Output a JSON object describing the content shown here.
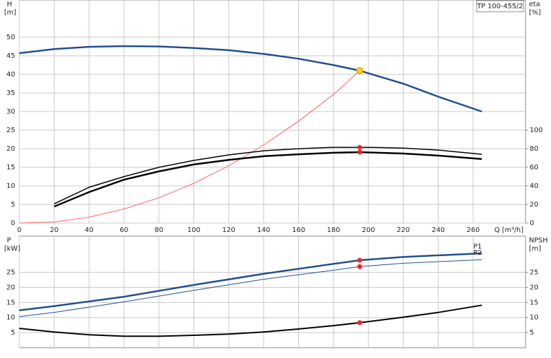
{
  "chart_data": [
    {
      "type": "line",
      "title": "TP 100-455/2",
      "xlabel": "Q [m³/h]",
      "ylabel": "H",
      "ylabel_unit": "[m]",
      "y2label": "eta",
      "y2label_unit": "[%]",
      "xlim": [
        0,
        290
      ],
      "xticks": [
        0,
        20,
        40,
        60,
        80,
        100,
        120,
        140,
        160,
        180,
        200,
        220,
        240,
        260
      ],
      "ylim": [
        0,
        60
      ],
      "yticks": [
        0,
        5,
        10,
        15,
        20,
        25,
        30,
        35,
        40,
        45,
        50
      ],
      "y2lim": [
        0,
        240
      ],
      "y2ticks": [
        0,
        20,
        40,
        60,
        80,
        100
      ],
      "grid": true,
      "series": [
        {
          "color": "#1f4e8c",
          "width": 2.5,
          "axis": "y",
          "x": [
            0,
            20,
            40,
            60,
            80,
            100,
            120,
            140,
            160,
            180,
            195,
            200,
            220,
            240,
            265
          ],
          "values": [
            45.7,
            46.8,
            47.4,
            47.6,
            47.5,
            47.1,
            46.5,
            45.5,
            44.2,
            42.5,
            41,
            40.3,
            37.5,
            34,
            30
          ]
        },
        {
          "color": "#ff3b3b",
          "width": 0.8,
          "axis": "y",
          "x": [
            0,
            20,
            40,
            60,
            80,
            100,
            120,
            140,
            160,
            180,
            195
          ],
          "values": [
            0,
            0.3,
            1.6,
            3.8,
            6.8,
            10.7,
            15.4,
            21,
            27.4,
            34.6,
            41
          ]
        },
        {
          "color": "#000000",
          "width": 1.5,
          "axis": "y2",
          "x": [
            20,
            40,
            60,
            80,
            100,
            120,
            140,
            160,
            180,
            200,
            220,
            240,
            265
          ],
          "values": [
            20.7,
            38.5,
            50,
            60,
            67.4,
            73.3,
            77.8,
            80,
            81.5,
            81.5,
            80.7,
            78.5,
            74
          ]
        },
        {
          "color": "#000000",
          "width": 2.5,
          "axis": "y2",
          "x": [
            20,
            40,
            60,
            80,
            100,
            120,
            140,
            160,
            180,
            195,
            220,
            240,
            265
          ],
          "values": [
            17.8,
            33.3,
            46.7,
            55.6,
            63,
            68,
            71.9,
            74,
            75.6,
            76.3,
            74.8,
            72.6,
            68.9
          ]
        }
      ],
      "points": [
        {
          "x": 195,
          "y": 41,
          "axis": "y",
          "color": "#ffd700"
        },
        {
          "x": 195,
          "y": 81.5,
          "axis": "y2",
          "color": "#ff2020"
        },
        {
          "x": 195,
          "y": 76.3,
          "axis": "y2",
          "color": "#ff2020"
        }
      ]
    },
    {
      "type": "line",
      "ylabel": "P",
      "ylabel_unit": "[kW]",
      "y2label": "NPSH",
      "y2label_unit": "[m]",
      "xlim": [
        0,
        290
      ],
      "ylim": [
        0,
        37
      ],
      "yticks": [
        5,
        10,
        15,
        20,
        25
      ],
      "y2lim": [
        0,
        37
      ],
      "y2ticks": [
        5,
        10,
        15,
        20,
        25
      ],
      "grid": true,
      "series": [
        {
          "name": "P1",
          "color": "#1f4e8c",
          "width": 2.5,
          "axis": "y",
          "x": [
            0,
            20,
            60,
            100,
            140,
            180,
            195,
            220,
            265
          ],
          "values": [
            12.4,
            13.8,
            16.9,
            20.8,
            24.5,
            27.8,
            29,
            30.1,
            31.3
          ]
        },
        {
          "name": "P2",
          "color": "#1f4e8c",
          "width": 1,
          "axis": "y",
          "x": [
            0,
            20,
            60,
            100,
            140,
            180,
            195,
            220,
            265
          ],
          "values": [
            10.3,
            11.7,
            15.2,
            19,
            22.7,
            25.7,
            26.9,
            28,
            29.2
          ]
        },
        {
          "color": "#000000",
          "width": 2,
          "axis": "y2",
          "x": [
            0,
            20,
            40,
            60,
            80,
            100,
            120,
            140,
            160,
            180,
            195,
            220,
            240,
            265
          ],
          "values": [
            6.4,
            5.2,
            4.3,
            3.8,
            3.8,
            4.1,
            4.5,
            5.2,
            6.2,
            7.3,
            8.3,
            10.1,
            11.7,
            14.1
          ]
        }
      ],
      "points": [
        {
          "x": 195,
          "y": 29,
          "axis": "y",
          "color": "#ff2020"
        },
        {
          "x": 195,
          "y": 26.9,
          "axis": "y",
          "color": "#ff2020"
        },
        {
          "x": 195,
          "y": 8.3,
          "axis": "y2",
          "color": "#ff2020"
        }
      ]
    }
  ]
}
